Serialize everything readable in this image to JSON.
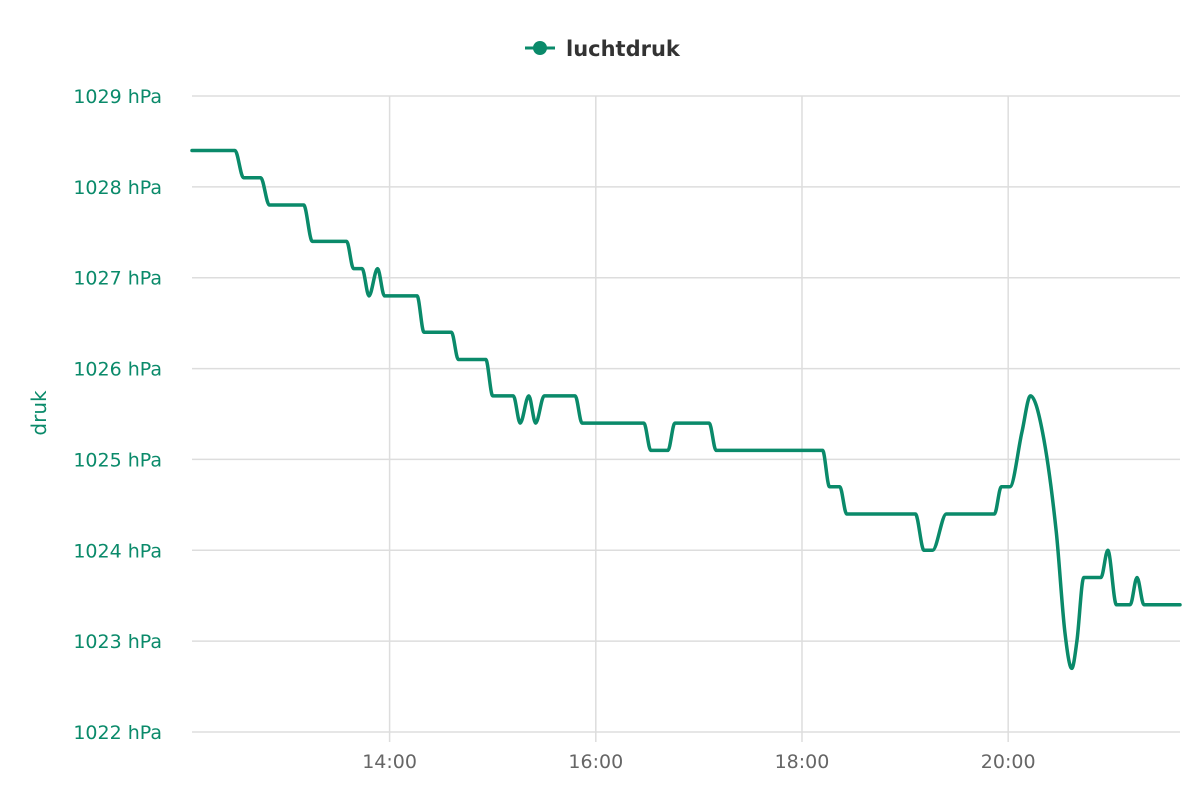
{
  "chart_data": {
    "type": "line",
    "title": "",
    "xlabel": "",
    "ylabel": "druk",
    "unit": "hPa",
    "legend": {
      "position": "top-center",
      "entries": [
        "luchtdruk"
      ]
    },
    "grid": true,
    "ylim": [
      1022,
      1029
    ],
    "yticks": [
      1029,
      1028,
      1027,
      1026,
      1025,
      1024,
      1023,
      1022
    ],
    "ytick_labels": [
      "1029 hPa",
      "1028 hPa",
      "1027 hPa",
      "1026 hPa",
      "1025 hPa",
      "1024 hPa",
      "1023 hPa",
      "1022 hPa"
    ],
    "xlim": [
      "12:05",
      "21:40"
    ],
    "xticks": [
      "14:00",
      "16:00",
      "18:00",
      "20:00"
    ],
    "colors": {
      "series": "#0a8a6a",
      "axis_text": "#0a8a6a",
      "x_tick_text": "#666666",
      "grid": "#dddddd"
    },
    "series": [
      {
        "name": "luchtdruk",
        "color": "#0a8a6a",
        "points": [
          [
            "12:05",
            1028.4
          ],
          [
            "12:30",
            1028.4
          ],
          [
            "12:35",
            1028.1
          ],
          [
            "12:45",
            1028.1
          ],
          [
            "12:50",
            1027.8
          ],
          [
            "13:10",
            1027.8
          ],
          [
            "13:15",
            1027.4
          ],
          [
            "13:35",
            1027.4
          ],
          [
            "13:39",
            1027.1
          ],
          [
            "13:44",
            1027.1
          ],
          [
            "13:48",
            1026.8
          ],
          [
            "13:53",
            1027.1
          ],
          [
            "13:57",
            1026.8
          ],
          [
            "14:16",
            1026.8
          ],
          [
            "14:20",
            1026.4
          ],
          [
            "14:36",
            1026.4
          ],
          [
            "14:40",
            1026.1
          ],
          [
            "14:56",
            1026.1
          ],
          [
            "15:00",
            1025.7
          ],
          [
            "15:12",
            1025.7
          ],
          [
            "15:16",
            1025.4
          ],
          [
            "15:21",
            1025.7
          ],
          [
            "15:25",
            1025.4
          ],
          [
            "15:30",
            1025.7
          ],
          [
            "15:48",
            1025.7
          ],
          [
            "15:52",
            1025.4
          ],
          [
            "16:28",
            1025.4
          ],
          [
            "16:32",
            1025.1
          ],
          [
            "16:42",
            1025.1
          ],
          [
            "16:46",
            1025.4
          ],
          [
            "17:06",
            1025.4
          ],
          [
            "17:10",
            1025.1
          ],
          [
            "18:12",
            1025.1
          ],
          [
            "18:16",
            1024.7
          ],
          [
            "18:22",
            1024.7
          ],
          [
            "18:26",
            1024.4
          ],
          [
            "19:06",
            1024.4
          ],
          [
            "19:11",
            1024.0
          ],
          [
            "19:16",
            1024.0
          ],
          [
            "19:24",
            1024.4
          ],
          [
            "19:52",
            1024.4
          ],
          [
            "19:56",
            1024.7
          ],
          [
            "20:01",
            1024.7
          ],
          [
            "20:08",
            1025.3
          ],
          [
            "20:13",
            1025.7
          ],
          [
            "20:20",
            1025.3
          ],
          [
            "20:28",
            1024.2
          ],
          [
            "20:33",
            1023.1
          ],
          [
            "20:37",
            1022.7
          ],
          [
            "20:40",
            1023.0
          ],
          [
            "20:44",
            1023.7
          ],
          [
            "20:54",
            1023.7
          ],
          [
            "20:58",
            1024.0
          ],
          [
            "21:03",
            1023.4
          ],
          [
            "21:11",
            1023.4
          ],
          [
            "21:15",
            1023.7
          ],
          [
            "21:19",
            1023.4
          ],
          [
            "21:40",
            1023.4
          ]
        ]
      }
    ]
  }
}
